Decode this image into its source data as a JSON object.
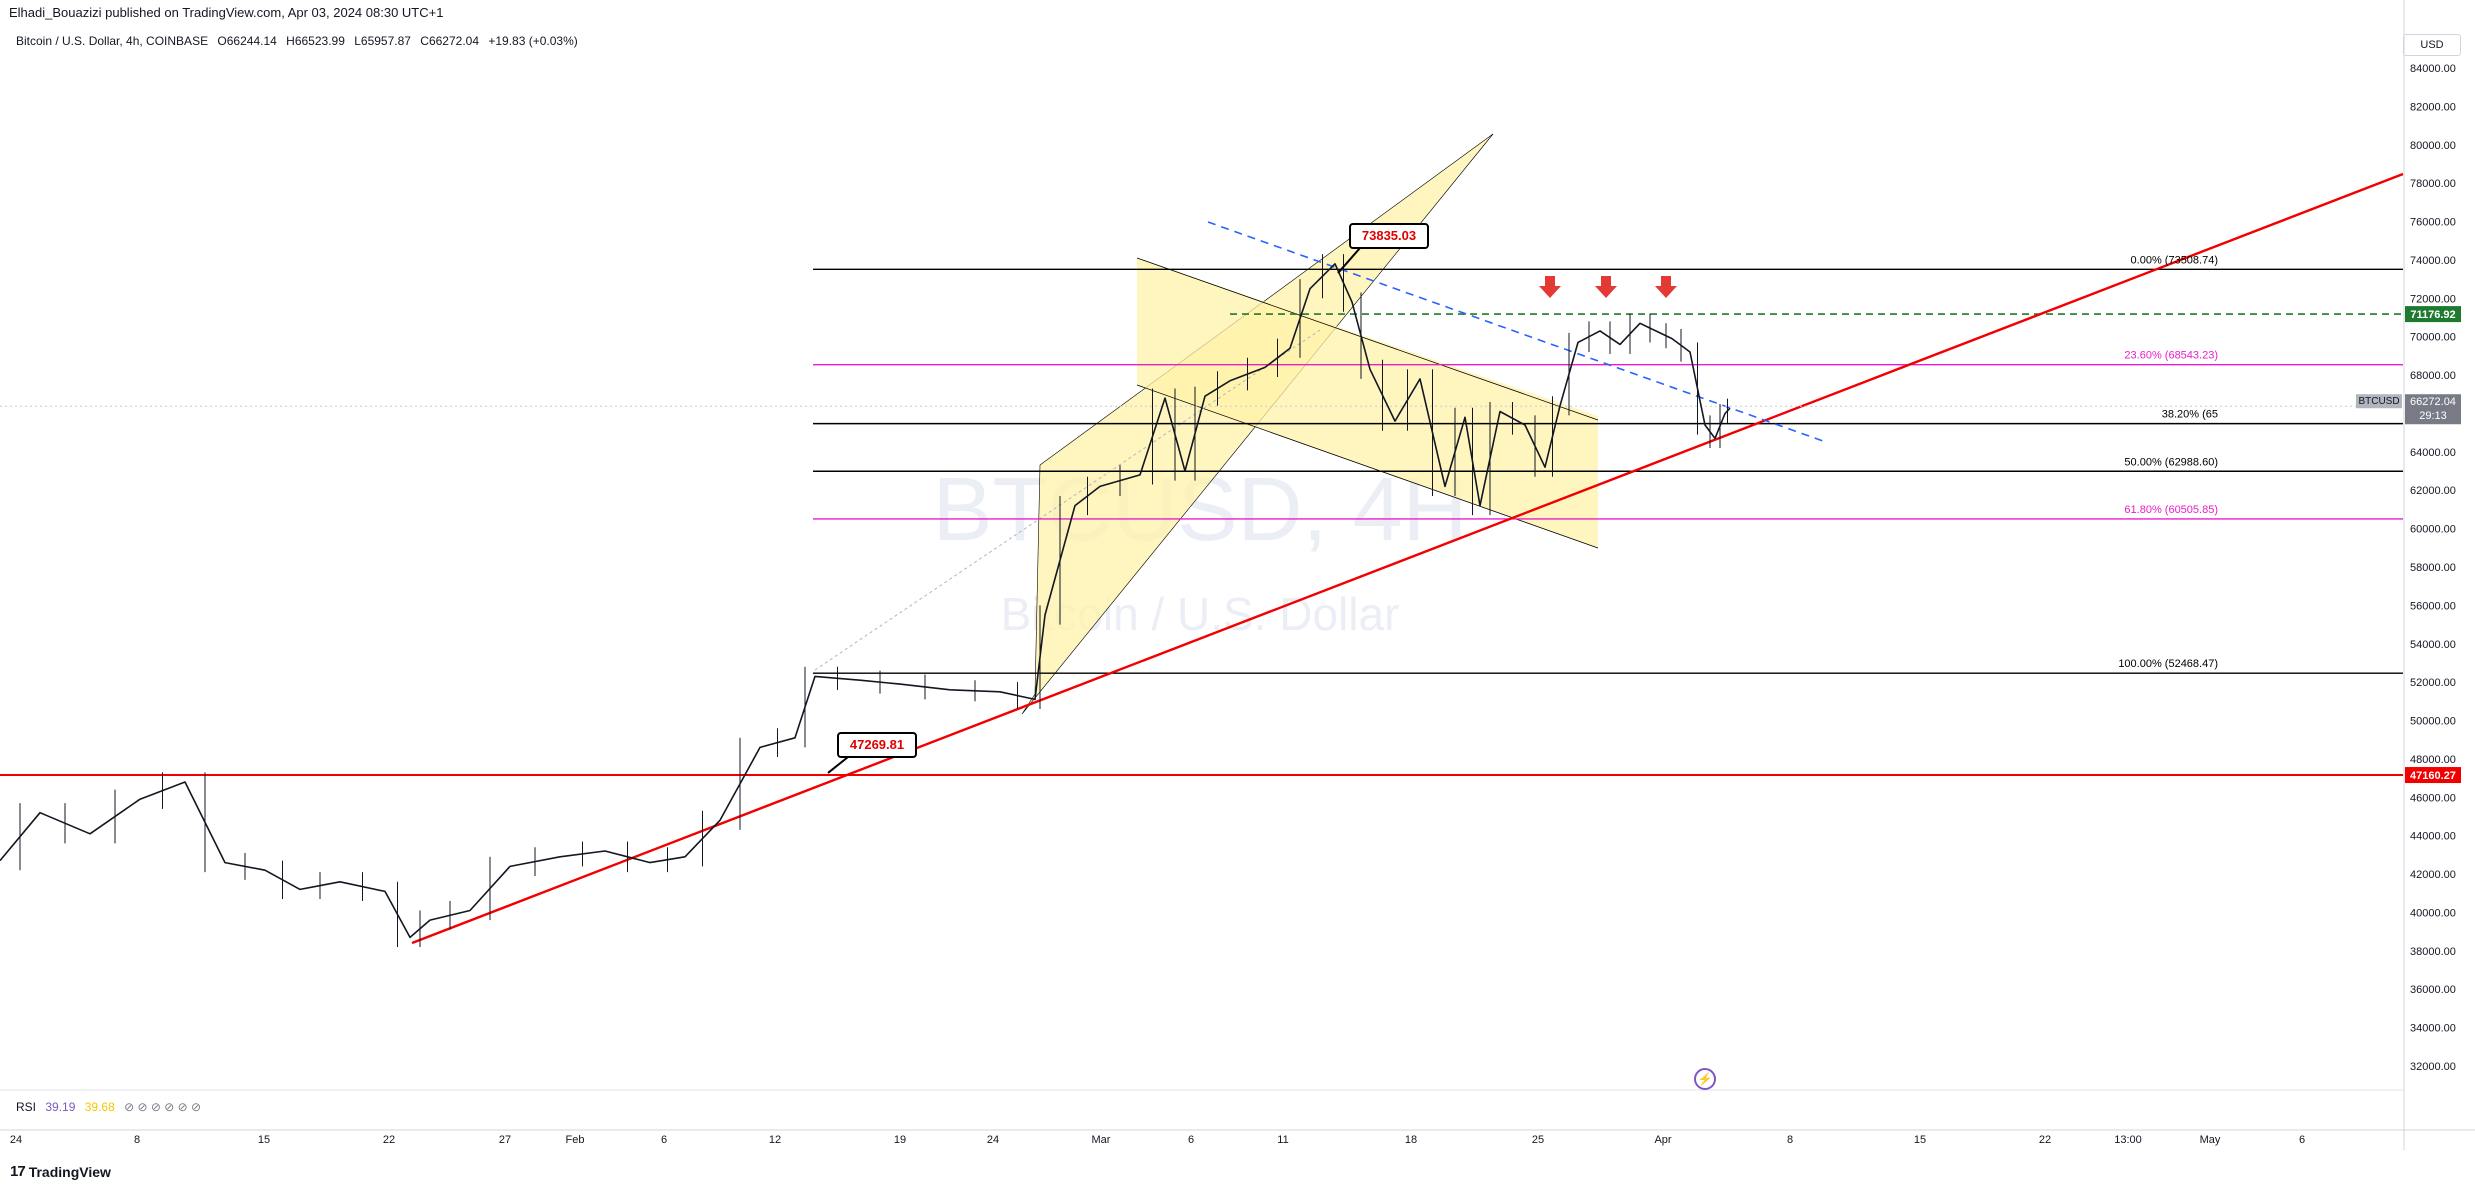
{
  "header": {
    "published_by": "Elhadi_Bouazizi published on TradingView.com, Apr 03, 2024 08:30 UTC+1",
    "symbol_title": "Bitcoin / U.S. Dollar, 4h, COINBASE",
    "open": "O66244.14",
    "high": "H66523.99",
    "low": "L65957.87",
    "close": "C66272.04",
    "change": "+19.83 (+0.03%)",
    "currency": "USD"
  },
  "watermark": {
    "symbol": "BTCUSD, 4H",
    "name": "Bitcoin / U.S. Dollar"
  },
  "footer": {
    "logo": "TradingView"
  },
  "rsi": {
    "label": "RSI",
    "value": "39.19",
    "ma_value": "39.68"
  },
  "colors": {
    "red_line": "#f20000",
    "fib_black": "#000000",
    "fib_magenta": "#e91ec9",
    "green_dash": "#1e7a2e",
    "blue_dash": "#2962ff",
    "channel_fill": "#fff1a8",
    "price_tag_bg": "#787b86"
  },
  "chart_data": {
    "type": "candlestick",
    "symbol": "BTCUSD",
    "interval": "4h",
    "exchange": "COINBASE",
    "ylim": [
      30000,
      86000
    ],
    "y_ticks": [
      "32000.00",
      "34000.00",
      "36000.00",
      "38000.00",
      "40000.00",
      "42000.00",
      "44000.00",
      "46000.00",
      "48000.00",
      "50000.00",
      "52000.00",
      "54000.00",
      "56000.00",
      "58000.00",
      "60000.00",
      "62000.00",
      "64000.00",
      "66000.00",
      "68000.00",
      "70000.00",
      "72000.00",
      "74000.00",
      "76000.00",
      "78000.00",
      "80000.00",
      "82000.00",
      "84000.00"
    ],
    "x_ticks": [
      "24",
      "8",
      "15",
      "22",
      "27",
      "Feb",
      "6",
      "12",
      "19",
      "24",
      "Mar",
      "6",
      "11",
      "18",
      "25",
      "Apr",
      "8",
      "15",
      "22",
      "13:00",
      "May",
      "6"
    ],
    "price_path": [
      [
        0,
        42700
      ],
      [
        40,
        45200
      ],
      [
        90,
        44100
      ],
      [
        140,
        45900
      ],
      [
        185,
        46800
      ],
      [
        225,
        42600
      ],
      [
        265,
        42200
      ],
      [
        300,
        41200
      ],
      [
        340,
        41600
      ],
      [
        385,
        41100
      ],
      [
        410,
        38700
      ],
      [
        430,
        39600
      ],
      [
        470,
        40100
      ],
      [
        510,
        42400
      ],
      [
        560,
        42900
      ],
      [
        605,
        43200
      ],
      [
        650,
        42600
      ],
      [
        685,
        42900
      ],
      [
        720,
        44800
      ],
      [
        760,
        48600
      ],
      [
        795,
        49100
      ],
      [
        815,
        52300
      ],
      [
        860,
        52100
      ],
      [
        900,
        51900
      ],
      [
        950,
        51600
      ],
      [
        1000,
        51500
      ],
      [
        1035,
        51100
      ],
      [
        1045,
        55500
      ],
      [
        1075,
        61200
      ],
      [
        1100,
        62200
      ],
      [
        1140,
        62800
      ],
      [
        1165,
        66800
      ],
      [
        1185,
        63000
      ],
      [
        1205,
        66900
      ],
      [
        1230,
        67700
      ],
      [
        1265,
        68400
      ],
      [
        1290,
        69400
      ],
      [
        1310,
        72500
      ],
      [
        1335,
        73800
      ],
      [
        1352,
        71800
      ],
      [
        1370,
        68300
      ],
      [
        1395,
        65600
      ],
      [
        1420,
        67800
      ],
      [
        1445,
        62200
      ],
      [
        1465,
        65800
      ],
      [
        1480,
        61200
      ],
      [
        1500,
        66100
      ],
      [
        1525,
        65400
      ],
      [
        1545,
        63200
      ],
      [
        1560,
        66400
      ],
      [
        1578,
        69700
      ],
      [
        1600,
        70300
      ],
      [
        1620,
        69600
      ],
      [
        1640,
        70700
      ],
      [
        1660,
        70200
      ],
      [
        1672,
        69900
      ],
      [
        1690,
        69200
      ],
      [
        1705,
        65400
      ],
      [
        1715,
        64700
      ],
      [
        1725,
        66000
      ],
      [
        1730,
        66272
      ]
    ],
    "fibonacci": [
      {
        "label": "0.00% (73508.74)",
        "price": 73508.74,
        "color": "black"
      },
      {
        "label": "23.60% (68543.23)",
        "price": 68543.23,
        "color": "magenta"
      },
      {
        "label": "38.20% (65",
        "price": 65470,
        "color": "black"
      },
      {
        "label": "50.00% (62988.60)",
        "price": 62988.6,
        "color": "black"
      },
      {
        "label": "61.80% (60505.85)",
        "price": 60505.85,
        "color": "magenta"
      },
      {
        "label": "100.00% (52468.47)",
        "price": 52468.47,
        "color": "black"
      }
    ],
    "horizontal_levels": [
      {
        "label": "47160.27",
        "price": 47160.27,
        "style": "solid",
        "color": "red"
      },
      {
        "label": "71176.92",
        "price": 71176.92,
        "style": "dashed",
        "color": "green"
      }
    ],
    "callouts": [
      {
        "label": "73835.03",
        "price": 73835.03
      },
      {
        "label": "47269.81",
        "price": 47269.81
      }
    ],
    "last_price": {
      "symbol": "BTCUSD",
      "price": "66272.04",
      "countdown": "29:13",
      "value": 66272.04
    },
    "annotations": [
      "ascending trendline",
      "rising channel",
      "falling channel",
      "descending dashed trendline",
      "three down arrows"
    ]
  }
}
